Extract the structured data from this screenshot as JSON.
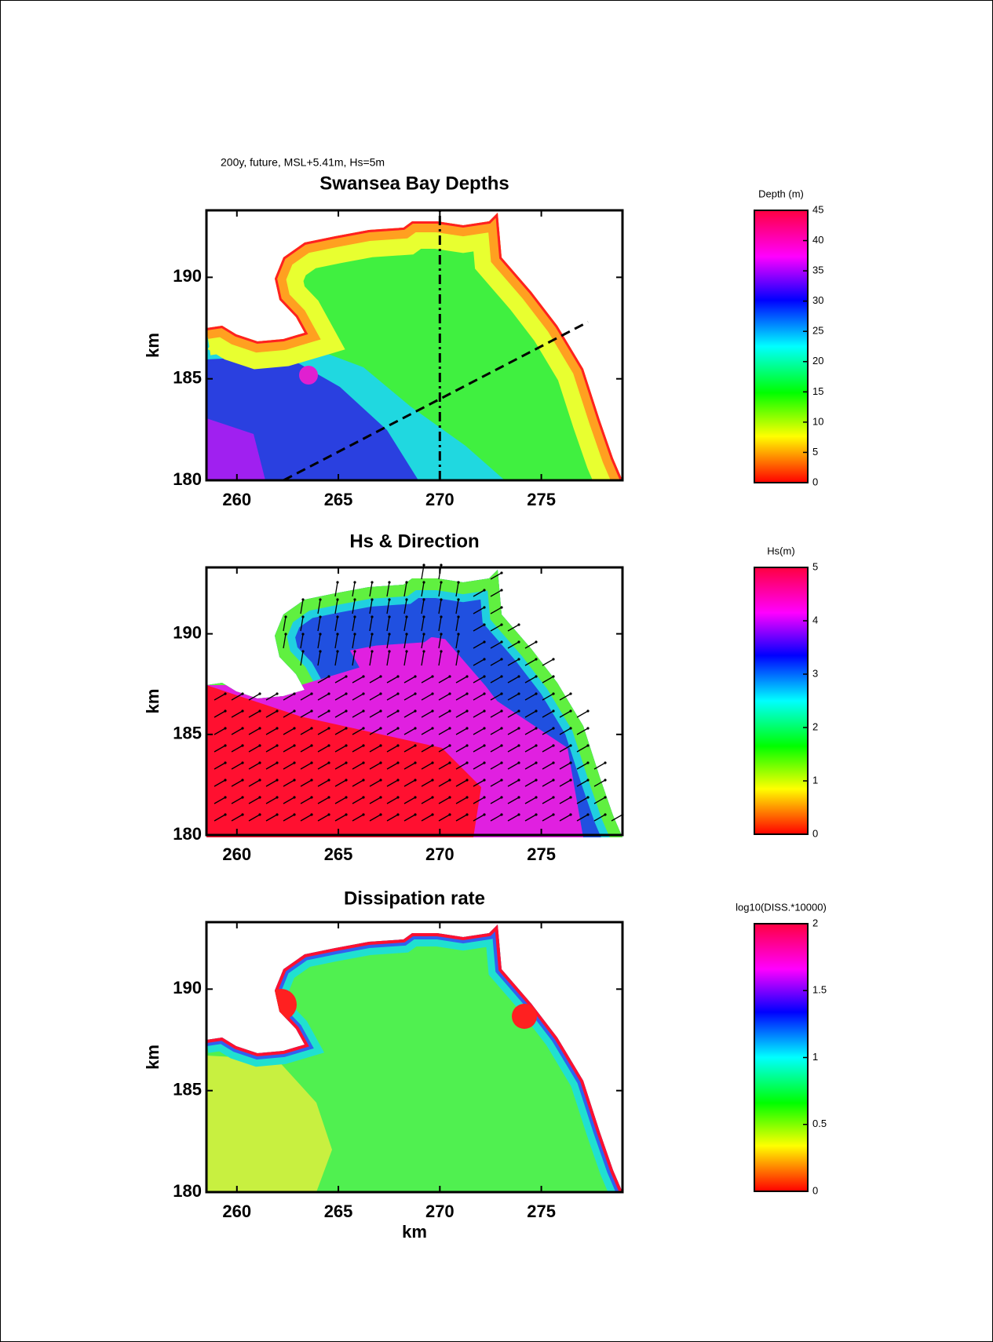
{
  "figure_title": "200y, future, MSL+5.41m, Hs=5m",
  "chart_data": [
    {
      "type": "heatmap",
      "title": "Swansea Bay Depths",
      "ylabel": "km",
      "xlim": [
        258.5,
        279
      ],
      "ylim": [
        180,
        193.3
      ],
      "xticks": [
        260,
        265,
        270,
        275
      ],
      "yticks": [
        180,
        185,
        190
      ],
      "colorbar": {
        "label": "Depth (m)",
        "lim": [
          0,
          45
        ],
        "ticks": [
          0,
          5,
          10,
          15,
          20,
          25,
          30,
          35,
          40,
          45
        ]
      },
      "transects": [
        {
          "style": "dashdot",
          "x": [
            270,
            270
          ],
          "y": [
            180,
            193.3
          ]
        },
        {
          "style": "dashed",
          "x": [
            262.3,
            277.3
          ],
          "y": [
            180,
            187.8
          ]
        }
      ]
    },
    {
      "type": "heatmap",
      "title": "Hs & Direction",
      "ylabel": "km",
      "xlim": [
        258.5,
        279
      ],
      "ylim": [
        180,
        193.3
      ],
      "xticks": [
        260,
        265,
        270,
        275
      ],
      "yticks": [
        180,
        185,
        190
      ],
      "colorbar": {
        "label": "Hs(m)",
        "lim": [
          0,
          5
        ],
        "ticks": [
          0,
          1,
          2,
          3,
          4,
          5
        ]
      },
      "arrows": true
    },
    {
      "type": "heatmap",
      "title": "Dissipation rate",
      "xlabel": "km",
      "ylabel": "km",
      "xlim": [
        258.5,
        279
      ],
      "ylim": [
        180,
        193.3
      ],
      "xticks": [
        260,
        265,
        270,
        275
      ],
      "yticks": [
        180,
        185,
        190
      ],
      "colorbar": {
        "label": "log10(DISS.*10000)",
        "lim": [
          0,
          2
        ],
        "ticks": [
          0,
          0.5,
          1,
          1.5,
          2
        ]
      }
    }
  ]
}
